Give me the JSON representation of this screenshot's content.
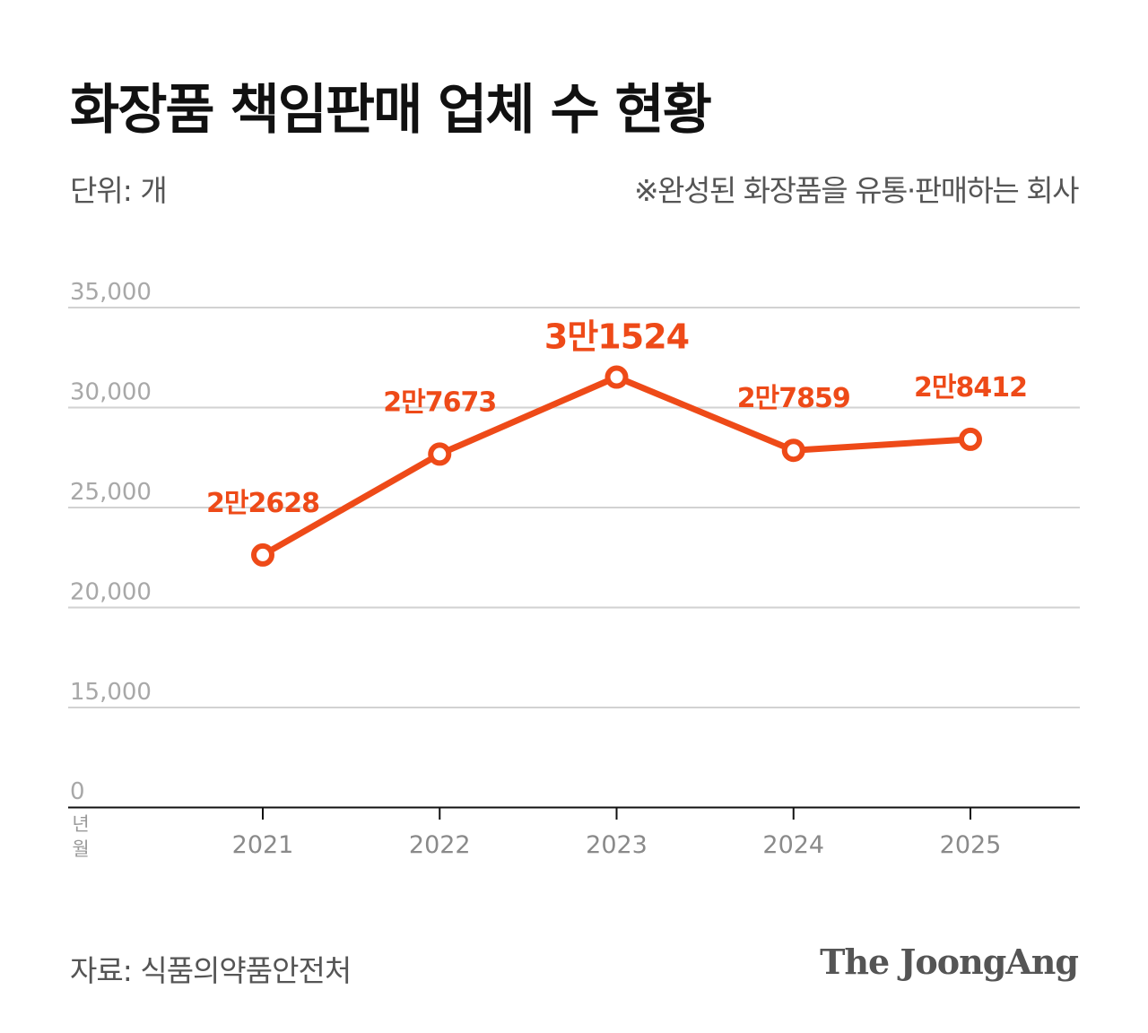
{
  "title": "화장품 책임판매 업체 수 현황",
  "unit_label": "단위: 개",
  "note": "※완성된 화장품을 유통·판매하는 회사",
  "source": "자료: 식품의약품안전처",
  "brand": "The JoongAng",
  "accent_color": "#ee4a18",
  "chart_data": {
    "type": "line",
    "x": [
      "2021",
      "2022",
      "2023",
      "2024",
      "2025"
    ],
    "values": [
      22628,
      27673,
      31524,
      27859,
      28412
    ],
    "data_labels": [
      "2만2628",
      "2만7673",
      "3만1524",
      "2만7859",
      "2만8412"
    ],
    "highlight_index": 2,
    "xlabel": "년월",
    "ylim": [
      0,
      35000
    ],
    "y_ticks": [
      0,
      15000,
      20000,
      25000,
      30000,
      35000
    ],
    "y_tick_labels": [
      "0",
      "15,000",
      "20,000",
      "25,000",
      "30,000",
      "35,000"
    ],
    "grid": true
  }
}
